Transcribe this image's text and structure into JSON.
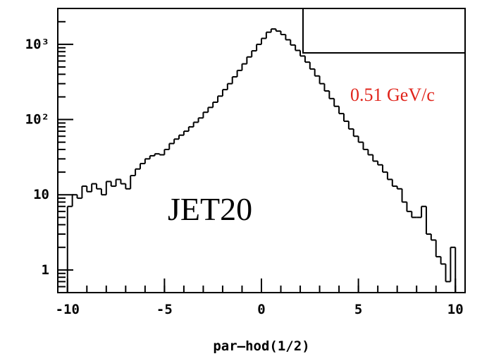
{
  "chart_data": {
    "type": "histogram",
    "x_label": "par—hod(1/2)",
    "annotations": [
      "0.51 GeV/c",
      "JET20"
    ],
    "bins": [
      -10,
      -9.75,
      -9.5,
      -9.25,
      -9,
      -8.75,
      -8.5,
      -8.25,
      -8,
      -7.75,
      -7.5,
      -7.25,
      -7,
      -6.75,
      -6.5,
      -6.25,
      -6,
      -5.75,
      -5.5,
      -5.25,
      -5,
      -4.75,
      -4.5,
      -4.25,
      -4,
      -3.75,
      -3.5,
      -3.25,
      -3,
      -2.75,
      -2.5,
      -2.25,
      -2,
      -1.75,
      -1.5,
      -1.25,
      -1,
      -0.75,
      -0.5,
      -0.25,
      0,
      0.25,
      0.5,
      0.75,
      1,
      1.25,
      1.5,
      1.75,
      2,
      2.25,
      2.5,
      2.75,
      3,
      3.25,
      3.5,
      3.75,
      4,
      4.25,
      4.5,
      4.75,
      5,
      5.25,
      5.5,
      5.75,
      6,
      6.25,
      6.5,
      6.75,
      7,
      7.25,
      7.5,
      7.75,
      8,
      8.25,
      8.5,
      8.75,
      9,
      9.25,
      9.5,
      9.75,
      10
    ],
    "values": [
      7,
      10,
      9,
      13,
      11,
      14,
      12,
      10,
      15,
      13,
      16,
      14,
      12,
      18,
      22,
      26,
      30,
      33,
      35,
      34,
      40,
      48,
      55,
      62,
      70,
      80,
      92,
      105,
      125,
      145,
      170,
      205,
      250,
      300,
      370,
      450,
      550,
      680,
      820,
      1000,
      1200,
      1450,
      1600,
      1500,
      1350,
      1150,
      980,
      830,
      700,
      580,
      470,
      380,
      300,
      240,
      190,
      150,
      120,
      95,
      75,
      60,
      50,
      40,
      34,
      28,
      25,
      20,
      16,
      13,
      12,
      8,
      6,
      5,
      5,
      7,
      3,
      2.5,
      1.5,
      1.2,
      0.7,
      2
    ],
    "color": "#000000",
    "xlim": [
      -10.5,
      10.5
    ],
    "xticks": [
      -10,
      -5,
      0,
      5,
      10
    ],
    "ylim": [
      0.5,
      3000
    ],
    "log_y": true,
    "yticks": [
      1,
      10,
      {
        "value": 100,
        "label": "10²"
      },
      {
        "value": 1000,
        "label": "10³"
      }
    ]
  }
}
